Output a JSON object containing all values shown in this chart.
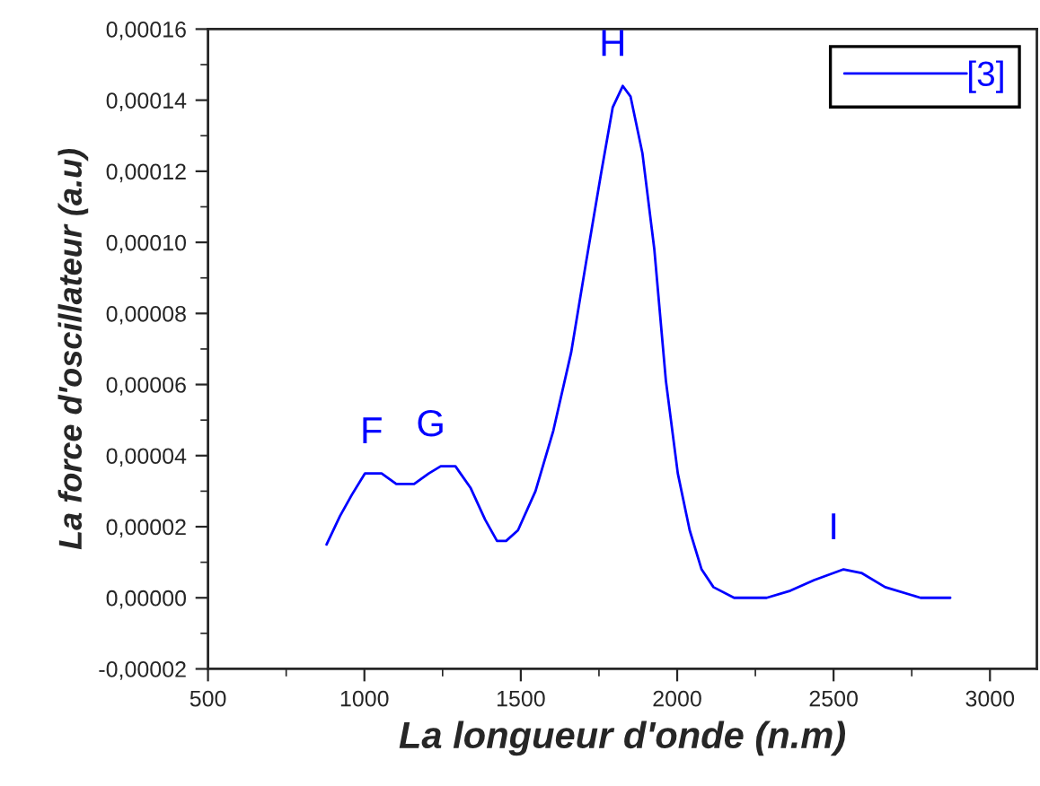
{
  "chart_data": {
    "type": "line",
    "xlabel": "La longueur d'onde (n.m)",
    "ylabel": "La force d'oscillateur (a.u)",
    "x": [
      879,
      922,
      960,
      1002,
      1055,
      1102,
      1159,
      1206,
      1244,
      1291,
      1339,
      1386,
      1424,
      1453,
      1491,
      1547,
      1604,
      1661,
      1708,
      1756,
      1794,
      1826,
      1851,
      1889,
      1927,
      1964,
      2002,
      2040,
      2078,
      2116,
      2182,
      2286,
      2362,
      2438,
      2532,
      2589,
      2665,
      2778,
      2873
    ],
    "series": [
      {
        "name": "[3]",
        "color": "#0000ff",
        "values": [
          1.5e-05,
          2.3e-05,
          2.9e-05,
          3.5e-05,
          3.5e-05,
          3.2e-05,
          3.2e-05,
          3.5e-05,
          3.7e-05,
          3.7e-05,
          3.1e-05,
          2.2e-05,
          1.6e-05,
          1.6e-05,
          1.9e-05,
          3e-05,
          4.7e-05,
          6.9e-05,
          9.4e-05,
          0.000119,
          0.000138,
          0.000144,
          0.000141,
          0.000125,
          9.8e-05,
          6.1e-05,
          3.5e-05,
          1.9e-05,
          8e-06,
          3e-06,
          0,
          0,
          2e-06,
          5e-06,
          8e-06,
          7e-06,
          3e-06,
          0,
          0
        ]
      }
    ],
    "annotations": [
      {
        "text": "F",
        "x": 1055,
        "y": 3.5e-05
      },
      {
        "text": "G",
        "x": 1244,
        "y": 3.7e-05
      },
      {
        "text": "H",
        "x": 1826,
        "y": 0.000144
      },
      {
        "text": "I",
        "x": 2532,
        "y": 8e-06
      }
    ],
    "xlim": [
      500,
      3150
    ],
    "xticks": [
      500,
      1000,
      1500,
      2000,
      2500,
      3000
    ],
    "ylim": [
      -2e-05,
      0.00016
    ],
    "yticks": [
      {
        "value": -2e-05,
        "label": "-0,00002"
      },
      {
        "value": 0,
        "label": "0,00000"
      },
      {
        "value": 2e-05,
        "label": "0,00002"
      },
      {
        "value": 4e-05,
        "label": "0,00004"
      },
      {
        "value": 6e-05,
        "label": "0,00006"
      },
      {
        "value": 8e-05,
        "label": "0,00008"
      },
      {
        "value": 0.0001,
        "label": "0,00010"
      },
      {
        "value": 0.00012,
        "label": "0,00012"
      },
      {
        "value": 0.00014,
        "label": "0,00014"
      },
      {
        "value": 0.00016,
        "label": "0,00016"
      }
    ],
    "grid": false,
    "legend": "top right",
    "marker": "none",
    "line_style": "solid"
  }
}
